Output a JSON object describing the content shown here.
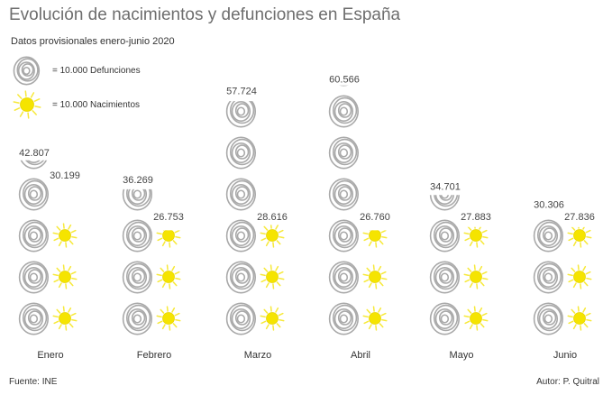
{
  "title": "Evolución de nacimientos y defunciones en España",
  "subtitle": "Datos provisionales enero-junio 2020",
  "legend": {
    "deaths_label": "= 10.000 Defunciones",
    "births_label": "= 10.000 Nacimientos"
  },
  "source": "Fuente:  INE",
  "author": "Autor: P. Quitral",
  "colors": {
    "death_icon": "#a9a9a9",
    "birth_icon": "#f5e400",
    "birth_ray": "#f7e93a"
  },
  "chart_data": {
    "type": "bar",
    "unit_per_icon": 10000,
    "categories": [
      "Enero",
      "Febrero",
      "Marzo",
      "Abril",
      "Mayo",
      "Junio"
    ],
    "series": [
      {
        "name": "Defunciones",
        "values": [
          42807,
          36269,
          57724,
          60566,
          34701,
          30306
        ],
        "labels": [
          "42.807",
          "36.269",
          "57.724",
          "60.566",
          "34.701",
          "30.306"
        ]
      },
      {
        "name": "Nacimientos",
        "values": [
          30199,
          26753,
          28616,
          26760,
          27883,
          27836
        ],
        "labels": [
          "30.199",
          "26.753",
          "28.616",
          "26.760",
          "27.883",
          "27.836"
        ]
      }
    ]
  }
}
